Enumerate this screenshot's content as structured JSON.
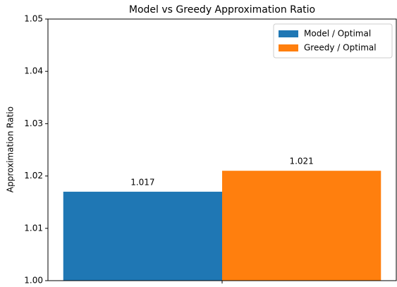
{
  "chart_data": {
    "type": "bar",
    "title": "Model vs Greedy Approximation Ratio",
    "ylabel": "Approximation Ratio",
    "categories": [
      null
    ],
    "series": [
      {
        "name": "Model / Optimal",
        "color": "#1f77b4",
        "values": [
          1.017
        ]
      },
      {
        "name": "Greedy / Optimal",
        "color": "#ff7f0e",
        "values": [
          1.021
        ]
      }
    ],
    "ylim": [
      1.0,
      1.05
    ],
    "yticks": [
      {
        "value": 1.0,
        "label": "1.00"
      },
      1.01,
      1.02,
      1.03,
      1.04,
      1.05
    ],
    "legend": "upper right",
    "grid": false
  }
}
